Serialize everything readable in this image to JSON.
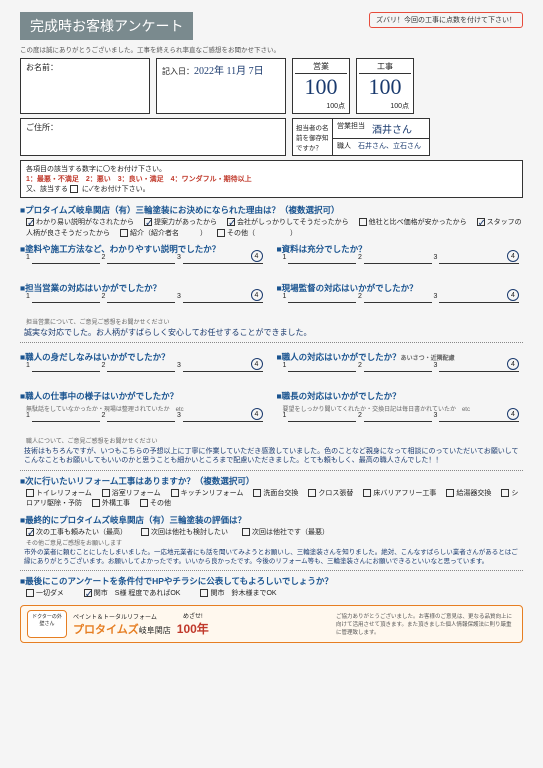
{
  "header": {
    "title": "完成時お客様アンケート",
    "zubari": "ズバリ！今回の工事に点数を付けて下さい！",
    "thanks": "この度は誠にありがとうございました。工事を終えられ率直なご感想をお聞かせ下さい。"
  },
  "customer": {
    "name_label": "お名前：",
    "name_value": "",
    "date_label": "記入日：",
    "date_value": "2022年 11月 7日",
    "addr_label": "ご住所："
  },
  "scores": {
    "sales": {
      "label": "営業",
      "value": "100",
      "max": "100点"
    },
    "work": {
      "label": "工事",
      "value": "100",
      "max": "100点"
    }
  },
  "tantou": {
    "q": "担当者の名前を御存知ですか？",
    "sales_lbl": "営業担当",
    "sales_val": "酒井さん",
    "worker_lbl": "職人",
    "worker_val": "石井さん、立石さん"
  },
  "instr": {
    "l1": "各項目の該当する数字に〇をお付け下さい。",
    "l2": "1：最悪・不満足　2：悪い　3：良い・満足　4：ワンダフル・期待以上",
    "l3": "又、該当する",
    "l3b": "に✓をお付け下さい。"
  },
  "q1": {
    "title": "■プロタイムズ岐阜関店（有）三輪塗装にお決めになられた理由は？（複数選択可）",
    "opts": [
      {
        "t": "わかり易い説明がなされたから",
        "c": true
      },
      {
        "t": "提案力があったから",
        "c": true
      },
      {
        "t": "会社がしっかりしてそうだったから",
        "c": true
      },
      {
        "t": "他社と比べ価格が安かったから",
        "c": false
      },
      {
        "t": "スタッフの人柄が良さそうだったから",
        "c": true
      },
      {
        "t": "紹介（紹介者名　　　）",
        "c": false
      },
      {
        "t": "その他（　　　　　）",
        "c": false
      }
    ]
  },
  "q2l": "■塗料や施工方法など、わかりやすい説明でしたか？",
  "q2r": "■資料は充分でしたか？",
  "q3l": "■担当営業の対応はいかがでしたか？",
  "q3r": "■現場監督の対応はいかがでしたか？",
  "q3sub": "担当営業について、ご意見ご感想をお聞かせください",
  "q3text": "誠実な対応でした。お人柄がすばらしく安心してお任せすることができました。",
  "q4l": "■職人の身だしなみはいかがでしたか？",
  "q4r": "■職人の対応はいかがでしたか？",
  "q4rsub": "あいさつ・近隣配慮",
  "q5l": "■職人の仕事中の様子はいかがでしたか？",
  "q5lsub": "無駄話をしていなかったか・現場は整理されていたか　etc",
  "q5r": "■職長の対応はいかがでしたか？",
  "q5rsub": "要望をしっかり聞いてくれたか・交換日記は毎日書かれていたか　etc",
  "q5sub2": "職人について、ご意見ご感想をお聞かせください",
  "q5text": "技術はもちろんですが、いつもこちらの予想以上に丁寧に作業していただき感激していました。色のことなど親身になって相談にのっていただいてお願いしてこんなこともお願いしてもいいのかと思うことも細かいところまで配慮いただきました。とても頼もしく、最高の職人さんでした！！",
  "q6": {
    "title": "■次に行いたいリフォーム工事はありますか？（複数選択可）",
    "opts": [
      "トイレリフォーム",
      "浴室リフォーム",
      "キッチンリフォーム",
      "洗面台交換",
      "クロス張替",
      "床バリアフリー工事",
      "給湯器交換",
      "シロアリ駆除・予防",
      "外構工事",
      "その他"
    ]
  },
  "q7": {
    "title": "■最終的にプロタイムズ岐阜関店（有）三輪塗装の評価は？",
    "opts": [
      {
        "t": "次の工事も頼みたい（最高）",
        "c": true
      },
      {
        "t": "次回は他社も検討したい",
        "c": false
      },
      {
        "t": "次回は他社です（最悪）",
        "c": false
      }
    ]
  },
  "q7sub": "その他ご意見ご感想をお願いします",
  "q7text": "市外の業者に頼むことにしたしまいました。一応地元業者にも話を聞いてみようとお願いし、三輪塗装さんを知りました。絶対、こんなすばらしい業者さんがあるとはご縁にありがとうございます。お願いしてよかったです。いいから良かったです。今後のリフォーム等も、三輪塗装さんにお願いできるといいなと思っています。",
  "q8": {
    "title": "■最後にこのアンケートを条件付でHPやチラシに公表してもよろしいでしょうか？",
    "opts": [
      {
        "t": "一切ダメ",
        "c": false
      },
      {
        "t": "関市　S様 程度であればOK",
        "c": true
      },
      {
        "t": "関市　鈴木様までOK",
        "c": false
      }
    ]
  },
  "footer": {
    "logo": "ドクターの外壁さん",
    "brand_pre": "ペイント＆トータルリフォーム",
    "brand": "プロタイムズ",
    "brand_suf": "岐阜関店",
    "mezase": "めざせ!",
    "years": "100年",
    "small": "ご協力ありがとうございました。お客様のご意見は、更なる品質向上に向けて活用させて頂きます。また頂きました個人情報保護法に則り厳重に管理致します。"
  },
  "circled": 4
}
